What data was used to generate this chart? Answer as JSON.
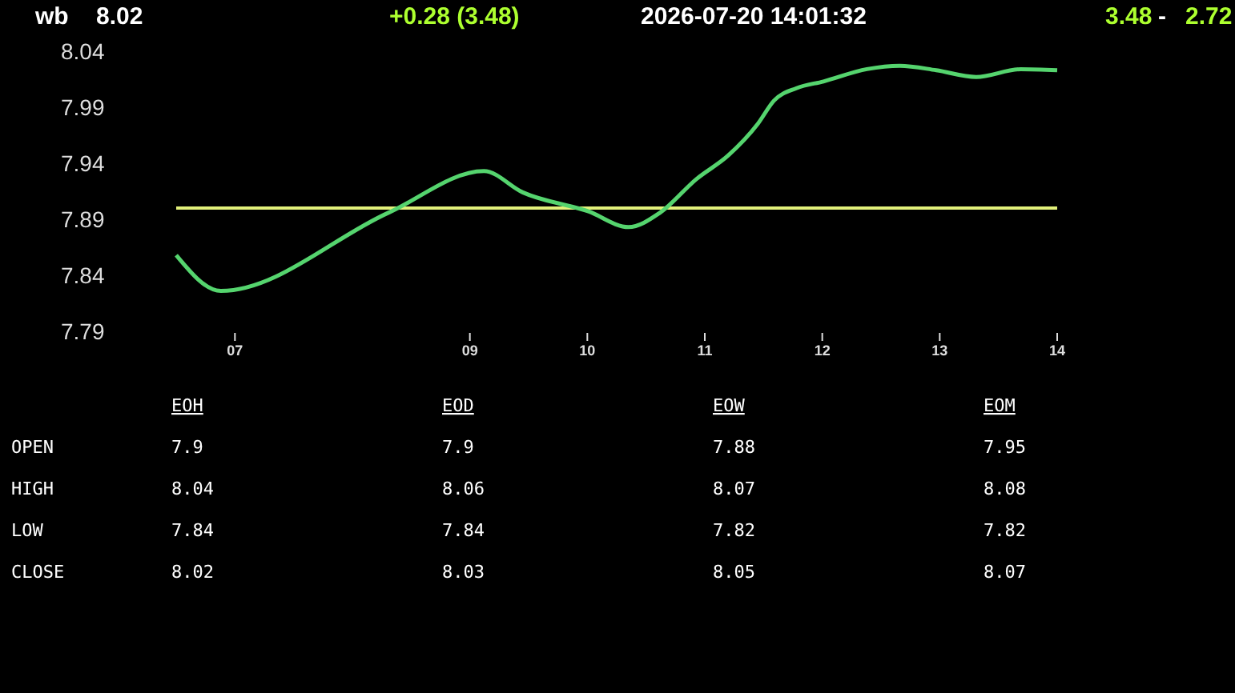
{
  "chart_data": [
    {
      "type": "line",
      "annotations": [
        "wb",
        "8.02",
        "+0.28  (3.48)",
        "2026-07-20   14:01:32",
        "3.48",
        "-",
        "2.72"
      ],
      "x": [
        6.5,
        6.88,
        8.31,
        9.12,
        9.45,
        10.01,
        10.35,
        10.62,
        10.93,
        11.2,
        11.45,
        11.59,
        11.78,
        12.01,
        12.38,
        12.66,
        12.97,
        13.31,
        13.69,
        14
      ],
      "series": [
        {
          "color": "#55d46e",
          "values": [
            7.858,
            7.826,
            7.896,
            7.933,
            7.914,
            7.897,
            7.883,
            7.896,
            7.926,
            7.947,
            7.975,
            7.996,
            8.007,
            8.013,
            8.024,
            8.027,
            8.023,
            8.017,
            8.024,
            8.023
          ]
        }
      ],
      "xlim": [
        6.5,
        14
      ],
      "xticks": [
        {
          "value": 7,
          "label": "07"
        },
        {
          "value": 9,
          "label": "09"
        },
        10,
        11,
        12,
        13,
        14
      ],
      "ylim": [
        7.79,
        8.04
      ],
      "yticks": [
        7.79,
        7.84,
        7.89,
        7.94,
        7.99,
        8.04
      ],
      "ref_lines": [
        {
          "axis": "y",
          "value": 7.9,
          "color": "#e2f07a"
        }
      ],
      "grid": false,
      "marker": "none",
      "line_style": "solid"
    },
    {
      "type": "other",
      "categories": [
        "EOH",
        "EOD",
        "EOW",
        "EOM"
      ],
      "series": [
        {
          "name": "OPEN",
          "values": [
            7.9,
            7.9,
            7.88,
            7.95
          ]
        },
        {
          "name": "HIGH",
          "values": [
            8.04,
            8.06,
            8.07,
            8.08
          ]
        },
        {
          "name": "LOW",
          "values": [
            7.84,
            7.84,
            7.82,
            7.82
          ]
        },
        {
          "name": "CLOSE",
          "values": [
            8.02,
            8.03,
            8.05,
            8.07
          ]
        }
      ],
      "data_labels": true
    }
  ]
}
